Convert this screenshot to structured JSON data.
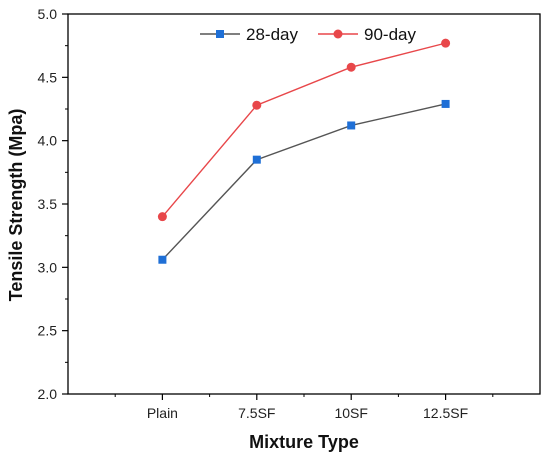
{
  "chart_data": {
    "type": "line",
    "title": "",
    "xlabel": "Mixture Type",
    "ylabel": "Tensile Strength (Mpa)",
    "categories": [
      "Plain",
      "7.5SF",
      "10SF",
      "12.5SF"
    ],
    "ylim": [
      2.0,
      5.0
    ],
    "yticks": [
      "2.0",
      "2.5",
      "3.0",
      "3.5",
      "4.0",
      "4.5",
      "5.0"
    ],
    "grid": false,
    "legend_position": "top-right",
    "series": [
      {
        "name": "28-day",
        "values": [
          3.06,
          3.85,
          4.12,
          4.29
        ],
        "line_color": "#555555",
        "marker_color": "#1f6fd6",
        "marker": "square"
      },
      {
        "name": "90-day",
        "values": [
          3.4,
          4.28,
          4.58,
          4.77
        ],
        "line_color": "#e8474a",
        "marker_color": "#e8474a",
        "marker": "circle"
      }
    ]
  }
}
